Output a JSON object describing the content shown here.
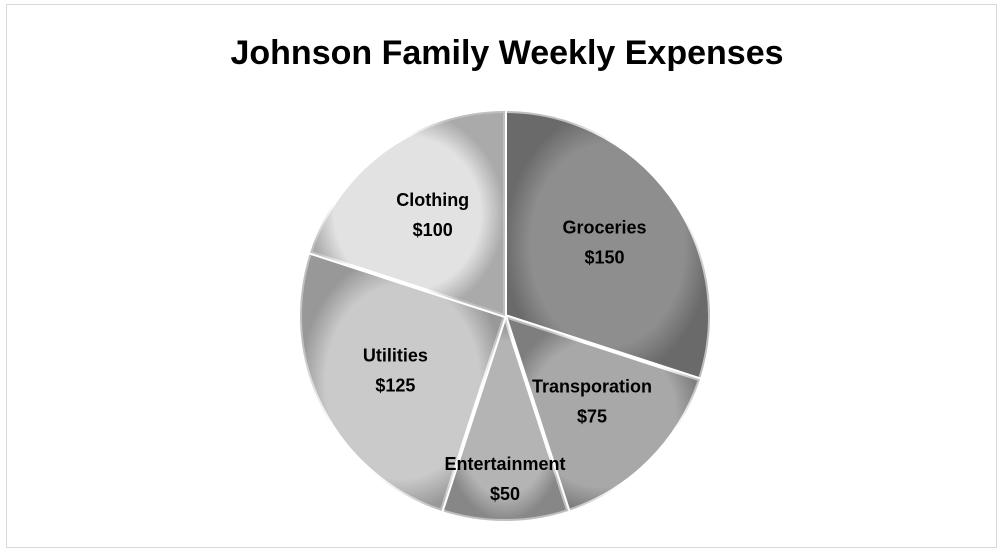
{
  "chart_data": {
    "type": "pie",
    "title": "Johnson Family Weekly Expenses",
    "categories": [
      "Groceries",
      "Transporation",
      "Entertainment",
      "Utilities",
      "Clothing"
    ],
    "values": [
      150,
      75,
      50,
      125,
      100
    ],
    "value_labels": [
      "$150",
      "$75",
      "$50",
      "$125",
      "$100"
    ],
    "colors": [
      "#8e8e8e",
      "#a8a8a8",
      "#b4b4b4",
      "#cacaca",
      "#e2e2e2"
    ]
  }
}
